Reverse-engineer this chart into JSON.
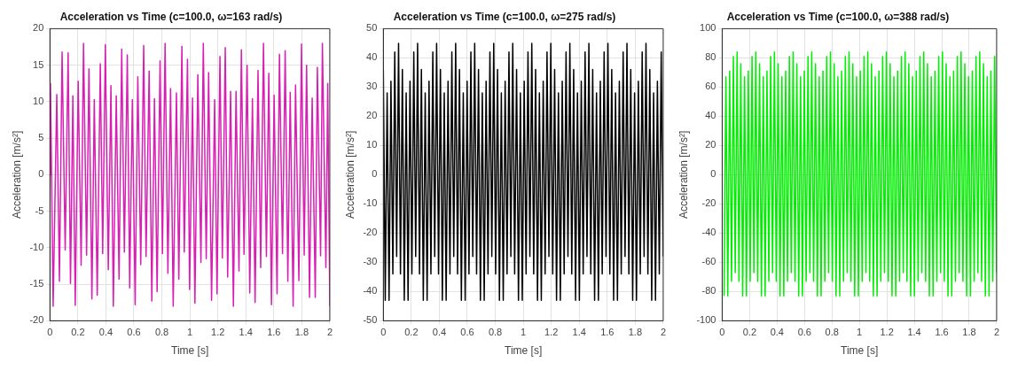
{
  "chart_data": [
    {
      "type": "line",
      "title": "Acceleration vs Time (c=100.0, ω=163 rad/s)",
      "xlabel": "Time [s]",
      "ylabel": "Acceleration [m/s²]",
      "xlim": [
        0,
        2
      ],
      "ylim": [
        -20,
        20
      ],
      "xticks": [
        0,
        0.2,
        0.4,
        0.6,
        0.8,
        1,
        1.2,
        1.4,
        1.6,
        1.8,
        2
      ],
      "yticks": [
        -20,
        -15,
        -10,
        -5,
        0,
        5,
        10,
        15,
        20
      ],
      "grid": true,
      "series": [
        {
          "color": "#d81fb4",
          "x": [
            0,
            0.004,
            0.023,
            0.049,
            0.068,
            0.087,
            0.109,
            0.13,
            0.147,
            0.164,
            0.181,
            0.202,
            0.223,
            0.24,
            0.262,
            0.279,
            0.3,
            0.317,
            0.338,
            0.36,
            0.377,
            0.396,
            0.417,
            0.436,
            0.453,
            0.474,
            0.494,
            0.513,
            0.532,
            0.553,
            0.57,
            0.589,
            0.609,
            0.628,
            0.649,
            0.67,
            0.687,
            0.709,
            0.728,
            0.747,
            0.766,
            0.787,
            0.804,
            0.823,
            0.843,
            0.862,
            0.881,
            0.904,
            0.921,
            0.943,
            0.96,
            0.983,
            0.998,
            1.019,
            1.036,
            1.057,
            1.079,
            1.096,
            1.117,
            1.134,
            1.155,
            1.177,
            1.194,
            1.215,
            1.232,
            1.253,
            1.27,
            1.291,
            1.311,
            1.33,
            1.351,
            1.368,
            1.387,
            1.409,
            1.428,
            1.447,
            1.466,
            1.487,
            1.506,
            1.526,
            1.547,
            1.564,
            1.583,
            1.602,
            1.623,
            1.64,
            1.662,
            1.681,
            1.7,
            1.717,
            1.738,
            1.755,
            1.779,
            1.798,
            1.817,
            1.834,
            1.855,
            1.874,
            1.896,
            1.911,
            1.934,
            1.947,
            1.972,
            1.985,
            2
          ],
          "values": [
            0,
            12.5,
            -18,
            11,
            -14.6,
            16.8,
            -10.3,
            16.7,
            -14.9,
            10.8,
            -17.9,
            12.8,
            -12.4,
            18,
            -11,
            14.5,
            -17,
            10.3,
            -16.5,
            15.2,
            -10.8,
            17.8,
            -13,
            12.2,
            -18,
            10.8,
            -14.3,
            17.2,
            -10.6,
            16.4,
            -15.5,
            10.3,
            -17.8,
            13.4,
            -12.3,
            17.7,
            -11.2,
            14.2,
            -17.3,
            10.4,
            -16,
            15.6,
            -10.8,
            18,
            -13.5,
            11.8,
            -18,
            11.2,
            -14.3,
            17.6,
            -10.6,
            15.8,
            -15.7,
            10.5,
            -17.6,
            13.7,
            -12,
            18,
            -11.5,
            14,
            -17.2,
            10.3,
            -16.3,
            16.2,
            -11.4,
            17.4,
            -14,
            11.4,
            -18,
            11.4,
            -13.2,
            17.1,
            -10.9,
            15,
            -16.2,
            10.4,
            -17.5,
            14.3,
            -12.7,
            18,
            -11.2,
            13.9,
            -17.8,
            10.9,
            -16.3,
            16.5,
            -10.8,
            17,
            -14.6,
            11.3,
            -18,
            12.3,
            -14.5,
            17.9,
            -11,
            15,
            -16.8,
            10.5,
            -16.8,
            14.7,
            -11.1,
            18,
            -12.7,
            12.5,
            -18
          ]
        }
      ]
    },
    {
      "type": "line",
      "title": "Acceleration vs Time (c=100.0, ω=275 rad/s)",
      "xlabel": "Time [s]",
      "ylabel": "Acceleration [m/s²]",
      "xlim": [
        0,
        2
      ],
      "ylim": [
        -50,
        50
      ],
      "xticks": [
        0,
        0.2,
        0.4,
        0.6,
        0.8,
        1,
        1.2,
        1.4,
        1.6,
        1.8,
        2
      ],
      "yticks": [
        -50,
        -40,
        -30,
        -20,
        -10,
        0,
        10,
        20,
        30,
        40,
        50
      ],
      "grid": true,
      "series": [
        {
          "color": "#000000",
          "x": [
            0,
            0.0136,
            0.0272,
            0.0408,
            0.0544,
            0.068,
            0.0816,
            0.0952,
            0.1088,
            0.1224,
            0.136,
            0.1496,
            0.1632,
            0.1768,
            0.1904,
            0.204,
            0.2176,
            0.2312,
            0.2448,
            0.2584,
            0.272,
            0.2856,
            0.2992,
            0.3128,
            0.3264,
            0.34,
            0.3536,
            0.3672,
            0.3808,
            0.3944,
            0.408,
            0.4216,
            0.4352,
            0.4488,
            0.4624,
            0.476,
            0.4896,
            0.5032,
            0.5168,
            0.5304,
            0.544,
            0.5576,
            0.5712,
            0.5848,
            0.5984,
            0.612,
            0.6256,
            0.6392,
            0.6528,
            0.6664,
            0.68,
            0.6936,
            0.7072,
            0.7208,
            0.7344,
            0.748,
            0.7616,
            0.7752,
            0.7888,
            0.8024,
            0.816,
            0.8296,
            0.8432,
            0.8568,
            0.8704,
            0.884,
            0.8976,
            0.9112,
            0.9248,
            0.9384,
            0.952,
            0.9656,
            0.9792,
            0.9928,
            1.0064,
            1.02,
            1.0336,
            1.0472,
            1.0608,
            1.0744,
            1.088,
            1.1016,
            1.1152,
            1.1288,
            1.1424,
            1.156,
            1.1696,
            1.1832,
            1.1968,
            1.2104,
            1.224,
            1.2376,
            1.2512,
            1.2648,
            1.2784,
            1.292,
            1.3056,
            1.3192,
            1.3328,
            1.3464,
            1.36,
            1.3736,
            1.3872,
            1.4008,
            1.4144,
            1.428,
            1.4416,
            1.4552,
            1.4688,
            1.4824,
            1.496,
            1.5096,
            1.5232,
            1.5368,
            1.5504,
            1.564,
            1.5776,
            1.5912,
            1.6048,
            1.6184,
            1.632,
            1.6456,
            1.6592,
            1.6728,
            1.6864,
            1.7,
            1.7136,
            1.7272,
            1.7408,
            1.7544,
            1.768,
            1.7816,
            1.7952,
            1.8088,
            1.8224,
            1.836,
            1.8496,
            1.8632,
            1.8768,
            1.8904,
            1.904,
            1.9176,
            1.9312,
            1.9448,
            1.9584,
            1.972,
            1.9856,
            1.9992
          ],
          "values": [
            36,
            -43,
            28,
            -43,
            32,
            -34,
            42,
            -28,
            45,
            -34,
            36,
            -43,
            28,
            -43,
            32,
            -34,
            42,
            -28,
            45,
            -34,
            36,
            -43,
            28,
            -43,
            32,
            -34,
            42,
            -28,
            45,
            -34,
            36,
            -43,
            28,
            -43,
            32,
            -34,
            42,
            -28,
            45,
            -34,
            36,
            -43,
            28,
            -43,
            32,
            -34,
            42,
            -28,
            45,
            -34,
            36,
            -43,
            28,
            -43,
            32,
            -34,
            42,
            -28,
            45,
            -34,
            36,
            -43,
            28,
            -43,
            32,
            -34,
            42,
            -28,
            45,
            -34,
            36,
            -43,
            28,
            -43,
            32,
            -34,
            42,
            -28,
            45,
            -34,
            36,
            -43,
            28,
            -43,
            32,
            -34,
            42,
            -28,
            45,
            -34,
            36,
            -43,
            28,
            -43,
            32,
            -34,
            42,
            -28,
            45,
            -34,
            36,
            -43,
            28,
            -43,
            32,
            -34,
            42,
            -28,
            45,
            -34,
            36,
            -43,
            28,
            -43,
            32,
            -34,
            42,
            -28,
            45,
            -34,
            36,
            -43,
            28,
            -43,
            32,
            -34,
            42,
            -28,
            45,
            -34,
            36,
            -43,
            28,
            -43,
            32,
            -34,
            42,
            -28,
            45,
            -34,
            36,
            -43,
            28,
            -43,
            32,
            -34,
            42,
            -28
          ]
        }
      ]
    },
    {
      "type": "line",
      "title": "Acceleration vs Time (c=100.0, ω=388 rad/s)",
      "xlabel": "Time [s]",
      "ylabel": "Acceleration [m/s²]",
      "xlim": [
        0,
        2
      ],
      "ylim": [
        -100,
        100
      ],
      "xticks": [
        0,
        0.2,
        0.4,
        0.6,
        0.8,
        1,
        1.2,
        1.4,
        1.6,
        1.8,
        2
      ],
      "yticks": [
        -100,
        -80,
        -60,
        -40,
        -20,
        0,
        20,
        40,
        60,
        80,
        100
      ],
      "grid": true,
      "series": [
        {
          "color": "#00ee00",
          "x": [
            0.0136,
            0.0272,
            0.0408,
            0.0544,
            0.068,
            0.0816,
            0.0952,
            0.1088,
            0.1224,
            0.136,
            0.1496,
            0.1632,
            0.1768,
            0.1904,
            0.204,
            0.2176,
            0.2312,
            0.2448,
            0.2584,
            0.272,
            0.2856,
            0.2992,
            0.3128,
            0.3264,
            0.34,
            0.3536,
            0.3672,
            0.3808,
            0.3944,
            0.408,
            0.4216,
            0.4352,
            0.4488,
            0.4624,
            0.476,
            0.4896,
            0.5032,
            0.5168,
            0.5304,
            0.544,
            0.5576,
            0.5712,
            0.5848,
            0.5984,
            0.612,
            0.6256,
            0.6392,
            0.6528,
            0.6664,
            0.68,
            0.6936,
            0.7072,
            0.7208,
            0.7344,
            0.748,
            0.7616,
            0.7752,
            0.7888,
            0.8024,
            0.816,
            0.8296,
            0.8432,
            0.8568,
            0.8704,
            0.884,
            0.8976,
            0.9112,
            0.9248,
            0.9384,
            0.952,
            0.9656,
            0.9792,
            0.9928,
            1.0064,
            1.02,
            1.0336,
            1.0472,
            1.0608,
            1.0744,
            1.088,
            1.1016,
            1.1152,
            1.1288,
            1.1424,
            1.156,
            1.1696,
            1.1832,
            1.1968,
            1.2104,
            1.224,
            1.2376,
            1.2512,
            1.2648,
            1.2784,
            1.292,
            1.3056,
            1.3192,
            1.3328,
            1.3464,
            1.36,
            1.3736,
            1.3872,
            1.4008,
            1.4144,
            1.428,
            1.4416,
            1.4552,
            1.4688,
            1.4824,
            1.496,
            1.5096,
            1.5232,
            1.5368,
            1.5504,
            1.564,
            1.5776,
            1.5912,
            1.6048,
            1.6184,
            1.632,
            1.6456,
            1.6592,
            1.6728,
            1.6864,
            1.7,
            1.7136,
            1.7272,
            1.7408,
            1.7544,
            1.768,
            1.7816,
            1.7952,
            1.8088,
            1.8224,
            1.836,
            1.8496,
            1.8632,
            1.8768,
            1.8904,
            1.904,
            1.9176,
            1.9312,
            1.9448,
            1.9584,
            1.972,
            1.9856,
            1.9992
          ],
          "values": [
            -83,
            67,
            -83,
            71,
            -73,
            81,
            -67,
            84,
            -73,
            76,
            -83,
            67,
            -83,
            71,
            -73,
            81,
            -67,
            84,
            -73,
            76,
            -83,
            67,
            -83,
            71,
            -73,
            81,
            -67,
            84,
            -73,
            76,
            -83,
            67,
            -83,
            71,
            -73,
            81,
            -67,
            84,
            -73,
            76,
            -83,
            67,
            -83,
            71,
            -73,
            81,
            -67,
            84,
            -73,
            76,
            -83,
            67,
            -83,
            71,
            -73,
            81,
            -67,
            84,
            -73,
            76,
            -83,
            67,
            -83,
            71,
            -73,
            81,
            -67,
            84,
            -73,
            76,
            -83,
            67,
            -83,
            71,
            -73,
            81,
            -67,
            84,
            -73,
            76,
            -83,
            67,
            -83,
            71,
            -73,
            81,
            -67,
            84,
            -73,
            76,
            -83,
            67,
            -83,
            71,
            -73,
            81,
            -67,
            84,
            -73,
            76,
            -83,
            67,
            -83,
            71,
            -73,
            81,
            -67,
            84,
            -73,
            76,
            -83,
            67,
            -83,
            71,
            -73,
            81,
            -67,
            84,
            -73,
            76,
            -83,
            67,
            -83,
            71,
            -73,
            81,
            -67,
            84,
            -73,
            76,
            -83,
            67,
            -83,
            71,
            -73,
            81,
            -67,
            84,
            -73,
            76,
            -83,
            67,
            -83,
            71,
            -73,
            81,
            -67
          ]
        }
      ]
    }
  ]
}
